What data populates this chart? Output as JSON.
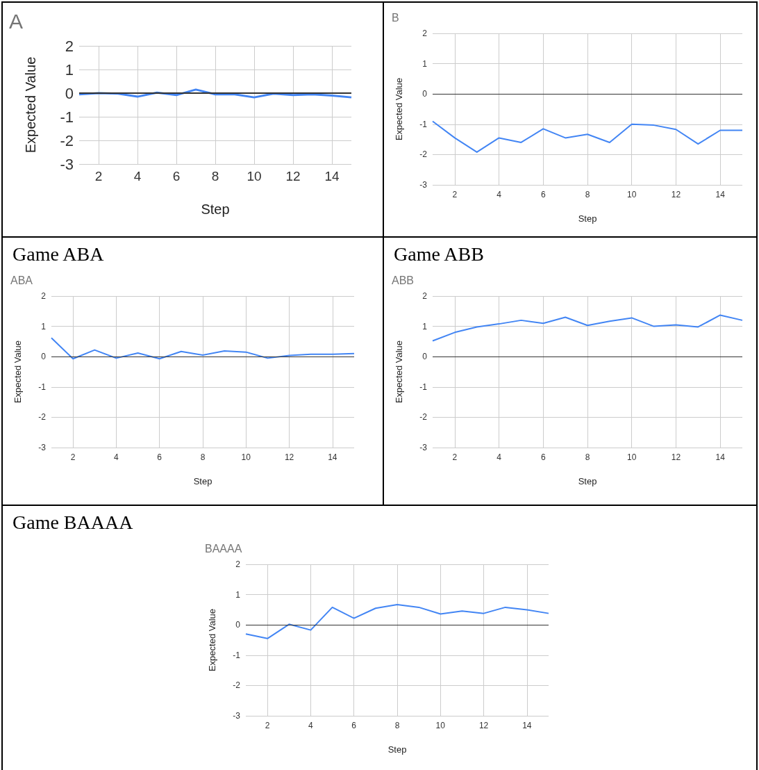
{
  "chart_data": [
    {
      "type": "line",
      "title": "A",
      "xlabel": "Step",
      "ylabel": "Expected Value",
      "x": [
        1,
        2,
        3,
        4,
        5,
        6,
        7,
        8,
        9,
        10,
        11,
        12,
        13,
        14,
        15
      ],
      "xlim": [
        1,
        15
      ],
      "xticks": [
        2,
        4,
        6,
        8,
        10,
        12,
        14
      ],
      "ylim": [
        -3,
        2
      ],
      "yticks": [
        -3,
        -2,
        -1,
        0,
        1,
        2
      ],
      "grid": true,
      "marker": "none",
      "ref_lines": [
        {
          "axis": "y",
          "value": 0,
          "color": "#333333"
        }
      ],
      "series": [
        {
          "color": "#4285f4",
          "values": [
            -0.05,
            0.0,
            -0.02,
            -0.15,
            0.02,
            -0.08,
            0.15,
            -0.05,
            -0.05,
            -0.18,
            -0.02,
            -0.08,
            -0.05,
            -0.1,
            -0.18
          ]
        }
      ]
    },
    {
      "type": "line",
      "title": "B",
      "xlabel": "Step",
      "ylabel": "Expected Value",
      "x": [
        1,
        2,
        3,
        4,
        5,
        6,
        7,
        8,
        9,
        10,
        11,
        12,
        13,
        14,
        15
      ],
      "xlim": [
        1,
        15
      ],
      "xticks": [
        2,
        4,
        6,
        8,
        10,
        12,
        14
      ],
      "ylim": [
        -3,
        2
      ],
      "yticks": [
        -3,
        -2,
        -1,
        0,
        1,
        2
      ],
      "grid": true,
      "marker": "none",
      "ref_lines": [
        {
          "axis": "y",
          "value": 0,
          "color": "#333333"
        }
      ],
      "series": [
        {
          "color": "#4285f4",
          "values": [
            -0.9,
            -1.45,
            -1.92,
            -1.45,
            -1.6,
            -1.15,
            -1.45,
            -1.33,
            -1.6,
            -1.0,
            -1.03,
            -1.17,
            -1.65,
            -1.2,
            -1.2
          ]
        }
      ]
    },
    {
      "type": "line",
      "title": "ABA",
      "annotations": [
        "Game ABA"
      ],
      "xlabel": "Step",
      "ylabel": "Expected Value",
      "x": [
        1,
        2,
        3,
        4,
        5,
        6,
        7,
        8,
        9,
        10,
        11,
        12,
        13,
        14,
        15
      ],
      "xlim": [
        1,
        15
      ],
      "xticks": [
        2,
        4,
        6,
        8,
        10,
        12,
        14
      ],
      "ylim": [
        -3,
        2
      ],
      "yticks": [
        -3,
        -2,
        -1,
        0,
        1,
        2
      ],
      "grid": true,
      "marker": "none",
      "ref_lines": [
        {
          "axis": "y",
          "value": 0,
          "color": "#333333"
        }
      ],
      "series": [
        {
          "color": "#4285f4",
          "values": [
            0.62,
            -0.07,
            0.22,
            -0.05,
            0.12,
            -0.07,
            0.17,
            0.05,
            0.19,
            0.15,
            -0.05,
            0.04,
            0.08,
            0.08,
            0.1
          ]
        }
      ]
    },
    {
      "type": "line",
      "title": "ABB",
      "annotations": [
        "Game ABB"
      ],
      "xlabel": "Step",
      "ylabel": "Expected Value",
      "x": [
        1,
        2,
        3,
        4,
        5,
        6,
        7,
        8,
        9,
        10,
        11,
        12,
        13,
        14,
        15
      ],
      "xlim": [
        1,
        15
      ],
      "xticks": [
        2,
        4,
        6,
        8,
        10,
        12,
        14
      ],
      "ylim": [
        -3,
        2
      ],
      "yticks": [
        -3,
        -2,
        -1,
        0,
        1,
        2
      ],
      "grid": true,
      "marker": "none",
      "ref_lines": [
        {
          "axis": "y",
          "value": 0,
          "color": "#333333"
        }
      ],
      "series": [
        {
          "color": "#4285f4",
          "values": [
            0.52,
            0.8,
            0.98,
            1.08,
            1.2,
            1.1,
            1.3,
            1.03,
            1.17,
            1.28,
            1.0,
            1.05,
            0.98,
            1.37,
            1.2
          ]
        }
      ]
    },
    {
      "type": "line",
      "title": "BAAAA",
      "annotations": [
        "Game BAAAA"
      ],
      "xlabel": "Step",
      "ylabel": "Expected Value",
      "x": [
        1,
        2,
        3,
        4,
        5,
        6,
        7,
        8,
        9,
        10,
        11,
        12,
        13,
        14,
        15
      ],
      "xlim": [
        1,
        15
      ],
      "xticks": [
        2,
        4,
        6,
        8,
        10,
        12,
        14
      ],
      "ylim": [
        -3,
        2
      ],
      "yticks": [
        -3,
        -2,
        -1,
        0,
        1,
        2
      ],
      "grid": true,
      "marker": "none",
      "ref_lines": [
        {
          "axis": "y",
          "value": 0,
          "color": "#333333"
        }
      ],
      "series": [
        {
          "color": "#4285f4",
          "values": [
            -0.3,
            -0.45,
            0.02,
            -0.17,
            0.58,
            0.22,
            0.55,
            0.67,
            0.58,
            0.36,
            0.46,
            0.38,
            0.58,
            0.5,
            0.38
          ]
        }
      ]
    }
  ]
}
